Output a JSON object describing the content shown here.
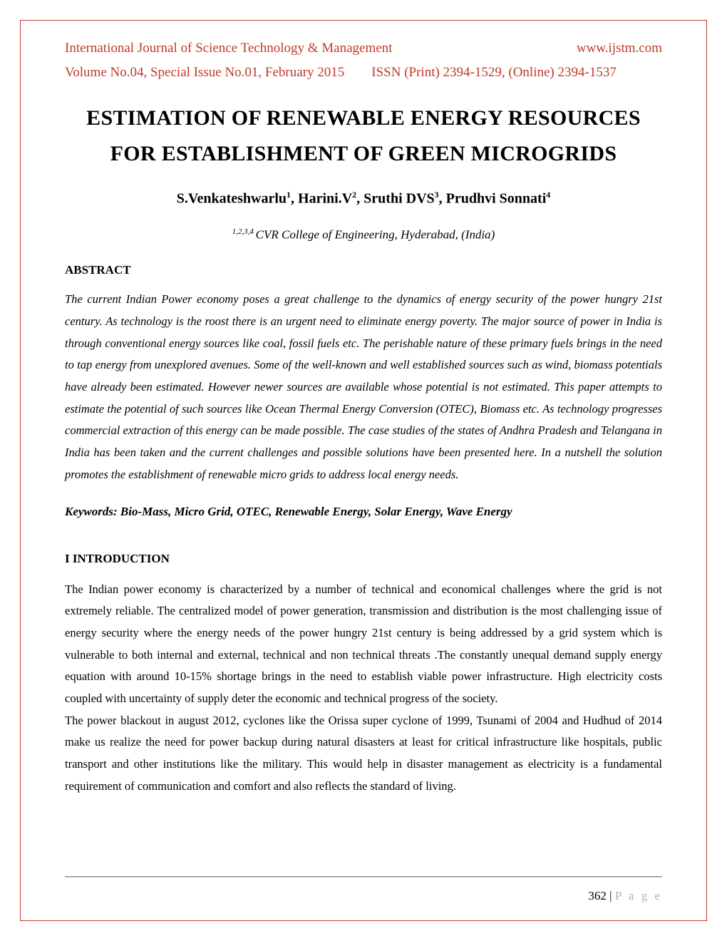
{
  "colors": {
    "accent_red": "#c0392b",
    "text_black": "#000000",
    "page_bg": "#ffffff",
    "footer_grey": "#b0b0b0",
    "rule_top": "#888888",
    "rule_bottom": "#cccccc"
  },
  "typography": {
    "body_family": "Times New Roman",
    "header_fontsize": 19,
    "title_fontsize": 30,
    "authors_fontsize": 20,
    "affiliation_fontsize": 17,
    "heading_fontsize": 17,
    "body_fontsize": 16.5,
    "line_height": 1.86
  },
  "header": {
    "journal": "International Journal of Science Technology & Management",
    "url": "www.ijstm.com",
    "volume_issn": "Volume No.04, Special Issue No.01, February 2015  ISSN (Print) 2394-1529, (Online) 2394-1537"
  },
  "title": {
    "line1": "ESTIMATION OF RENEWABLE ENERGY RESOURCES",
    "line2": "FOR ESTABLISHMENT OF GREEN MICROGRIDS"
  },
  "authors": {
    "a1": "S.Venkateshwarlu",
    "s1": "1",
    "sep1": ", ",
    "a2": "Harini.V",
    "s2": "2",
    "sep2": ", ",
    "a3": "Sruthi DVS",
    "s3": "3",
    "sep3": ", ",
    "a4": "Prudhvi Sonnati",
    "s4": "4"
  },
  "affiliation": {
    "sup": "1,2,3,4 ",
    "text": "CVR College of Engineering, Hyderabad, (India)"
  },
  "abstract": {
    "heading": "ABSTRACT",
    "text": "The current Indian Power economy poses a great challenge to the dynamics of energy security of the power hungry 21st century. As technology is the roost there is an urgent need to eliminate energy poverty. The major source of power in India is through conventional energy sources like coal, fossil fuels etc. The perishable nature of these primary fuels brings in the need to tap energy from unexplored avenues. Some of the well-known and well established sources such as wind, biomass potentials have already been estimated. However newer sources are available whose potential is not estimated. This paper attempts to estimate the potential of such sources like Ocean Thermal Energy Conversion (OTEC), Biomass etc. As technology progresses commercial extraction of this energy can be made possible. The case studies of the states of Andhra Pradesh and Telangana in India has been taken and the current challenges and possible solutions have been presented here. In a nutshell the solution promotes the establishment of renewable micro grids to address local energy needs."
  },
  "keywords": "Keywords: Bio-Mass, Micro Grid, OTEC, Renewable Energy, Solar Energy, Wave Energy",
  "introduction": {
    "heading": "I INTRODUCTION",
    "p1": "The Indian power economy is characterized by a number of technical and economical challenges where the grid is not extremely reliable. The  centralized model of  power generation, transmission and distribution is the most challenging issue of energy security where the energy needs of the power hungry 21st century is being addressed by  a  grid  system  which  is  vulnerable  to  both internal and external, technical and non technical threats .The constantly unequal demand supply energy equation with around 10-15% shortage brings in the need to establish viable power infrastructure. High electricity costs coupled with uncertainty of supply deter the economic and technical progress of the society.",
    "p2": "The power blackout in august 2012, cyclones like the Orissa super cyclone of 1999, Tsunami of 2004 and Hudhud of 2014 make us realize the need for power backup during natural disasters at   least   for   critical   infrastructure   like   hospitals, public transport and other institutions like the military. This would help in disaster management as electricity is a fundamental requirement of communication and comfort and also reflects the standard of living."
  },
  "footer": {
    "page_number": "362 | ",
    "page_label": "P a g e"
  }
}
